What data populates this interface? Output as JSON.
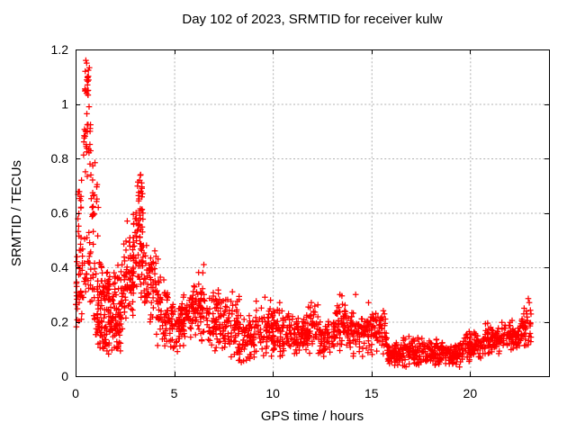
{
  "chart_data": {
    "type": "scatter",
    "title": "Day 102 of 2023, SRMTID for receiver kulw",
    "xlabel": "GPS time / hours",
    "ylabel": "SRMTID / TECUs",
    "xlim": [
      0,
      24
    ],
    "ylim": [
      0,
      1.2
    ],
    "xticks": {
      "values": [
        0,
        5,
        10,
        15,
        20
      ],
      "labels": [
        "0",
        "5",
        "10",
        "15",
        "20"
      ]
    },
    "yticks": {
      "values": [
        0,
        0.2,
        0.4,
        0.6,
        0.8,
        1.0,
        1.2
      ],
      "labels": [
        "0",
        "0.2",
        "0.4",
        "0.6",
        "0.8",
        "1",
        "1.2"
      ]
    },
    "grid": true,
    "legend": "none",
    "marker": "plus",
    "marker_color": "#ff0000",
    "marker_size_px": 7,
    "grid_color": "#b0b0b0",
    "axis_color": "#000000",
    "sampling_seed": 1337,
    "envelope_segments": [
      [
        0.0,
        0.35,
        0.12,
        0.58,
        42
      ],
      [
        0.05,
        0.3,
        0.55,
        0.72,
        9
      ],
      [
        0.35,
        0.8,
        0.26,
        0.55,
        26
      ],
      [
        0.4,
        0.78,
        0.7,
        1.02,
        28
      ],
      [
        0.45,
        0.7,
        1.0,
        1.16,
        15
      ],
      [
        0.75,
        1.15,
        0.42,
        0.88,
        24
      ],
      [
        0.8,
        1.6,
        0.16,
        0.45,
        60
      ],
      [
        1.0,
        2.3,
        0.08,
        0.26,
        95
      ],
      [
        1.6,
        2.6,
        0.14,
        0.42,
        75
      ],
      [
        2.4,
        2.95,
        0.18,
        0.55,
        60
      ],
      [
        2.9,
        3.45,
        0.28,
        0.66,
        62
      ],
      [
        3.1,
        3.42,
        0.55,
        0.74,
        20
      ],
      [
        3.45,
        4.1,
        0.18,
        0.5,
        60
      ],
      [
        4.1,
        4.7,
        0.1,
        0.4,
        58
      ],
      [
        4.7,
        5.3,
        0.08,
        0.3,
        52
      ],
      [
        5.3,
        5.9,
        0.1,
        0.32,
        55
      ],
      [
        5.85,
        6.15,
        0.14,
        0.36,
        26
      ],
      [
        6.15,
        6.65,
        0.1,
        0.4,
        40
      ],
      [
        6.65,
        7.25,
        0.09,
        0.33,
        52
      ],
      [
        7.25,
        7.8,
        0.08,
        0.3,
        48
      ],
      [
        7.8,
        8.3,
        0.05,
        0.3,
        45
      ],
      [
        8.3,
        9.1,
        0.03,
        0.24,
        68
      ],
      [
        9.1,
        10.05,
        0.06,
        0.29,
        75
      ],
      [
        10.05,
        10.8,
        0.07,
        0.26,
        62
      ],
      [
        10.8,
        11.6,
        0.06,
        0.23,
        68
      ],
      [
        11.6,
        12.3,
        0.07,
        0.27,
        60
      ],
      [
        12.3,
        13.15,
        0.06,
        0.21,
        70
      ],
      [
        13.15,
        13.75,
        0.08,
        0.3,
        52
      ],
      [
        13.75,
        14.6,
        0.06,
        0.25,
        68
      ],
      [
        14.6,
        15.8,
        0.07,
        0.25,
        95
      ],
      [
        15.8,
        16.6,
        0.025,
        0.13,
        70
      ],
      [
        16.6,
        17.6,
        0.03,
        0.15,
        82
      ],
      [
        17.6,
        18.6,
        0.035,
        0.14,
        82
      ],
      [
        18.6,
        19.6,
        0.03,
        0.13,
        80
      ],
      [
        19.6,
        20.6,
        0.05,
        0.18,
        80
      ],
      [
        20.6,
        21.6,
        0.07,
        0.2,
        80
      ],
      [
        21.6,
        22.5,
        0.08,
        0.21,
        75
      ],
      [
        22.5,
        23.1,
        0.1,
        0.26,
        48
      ]
    ],
    "outlier_points": [
      [
        0.52,
        1.16
      ],
      [
        0.56,
        1.15
      ],
      [
        0.49,
        1.12
      ],
      [
        0.6,
        1.1
      ],
      [
        0.64,
        1.05
      ],
      [
        0.3,
        0.72
      ],
      [
        0.28,
        0.66
      ],
      [
        1.95,
        0.38
      ],
      [
        2.62,
        0.57
      ],
      [
        3.3,
        0.74
      ],
      [
        3.25,
        0.72
      ],
      [
        3.35,
        0.71
      ],
      [
        4.18,
        0.43
      ],
      [
        6.5,
        0.41
      ],
      [
        6.45,
        0.38
      ],
      [
        7.95,
        0.31
      ],
      [
        9.6,
        0.29
      ],
      [
        10.35,
        0.27
      ],
      [
        11.95,
        0.27
      ],
      [
        13.4,
        0.3
      ],
      [
        13.5,
        0.295
      ],
      [
        14.2,
        0.3
      ],
      [
        14.85,
        0.27
      ],
      [
        22.95,
        0.285
      ],
      [
        23.0,
        0.27
      ]
    ]
  }
}
